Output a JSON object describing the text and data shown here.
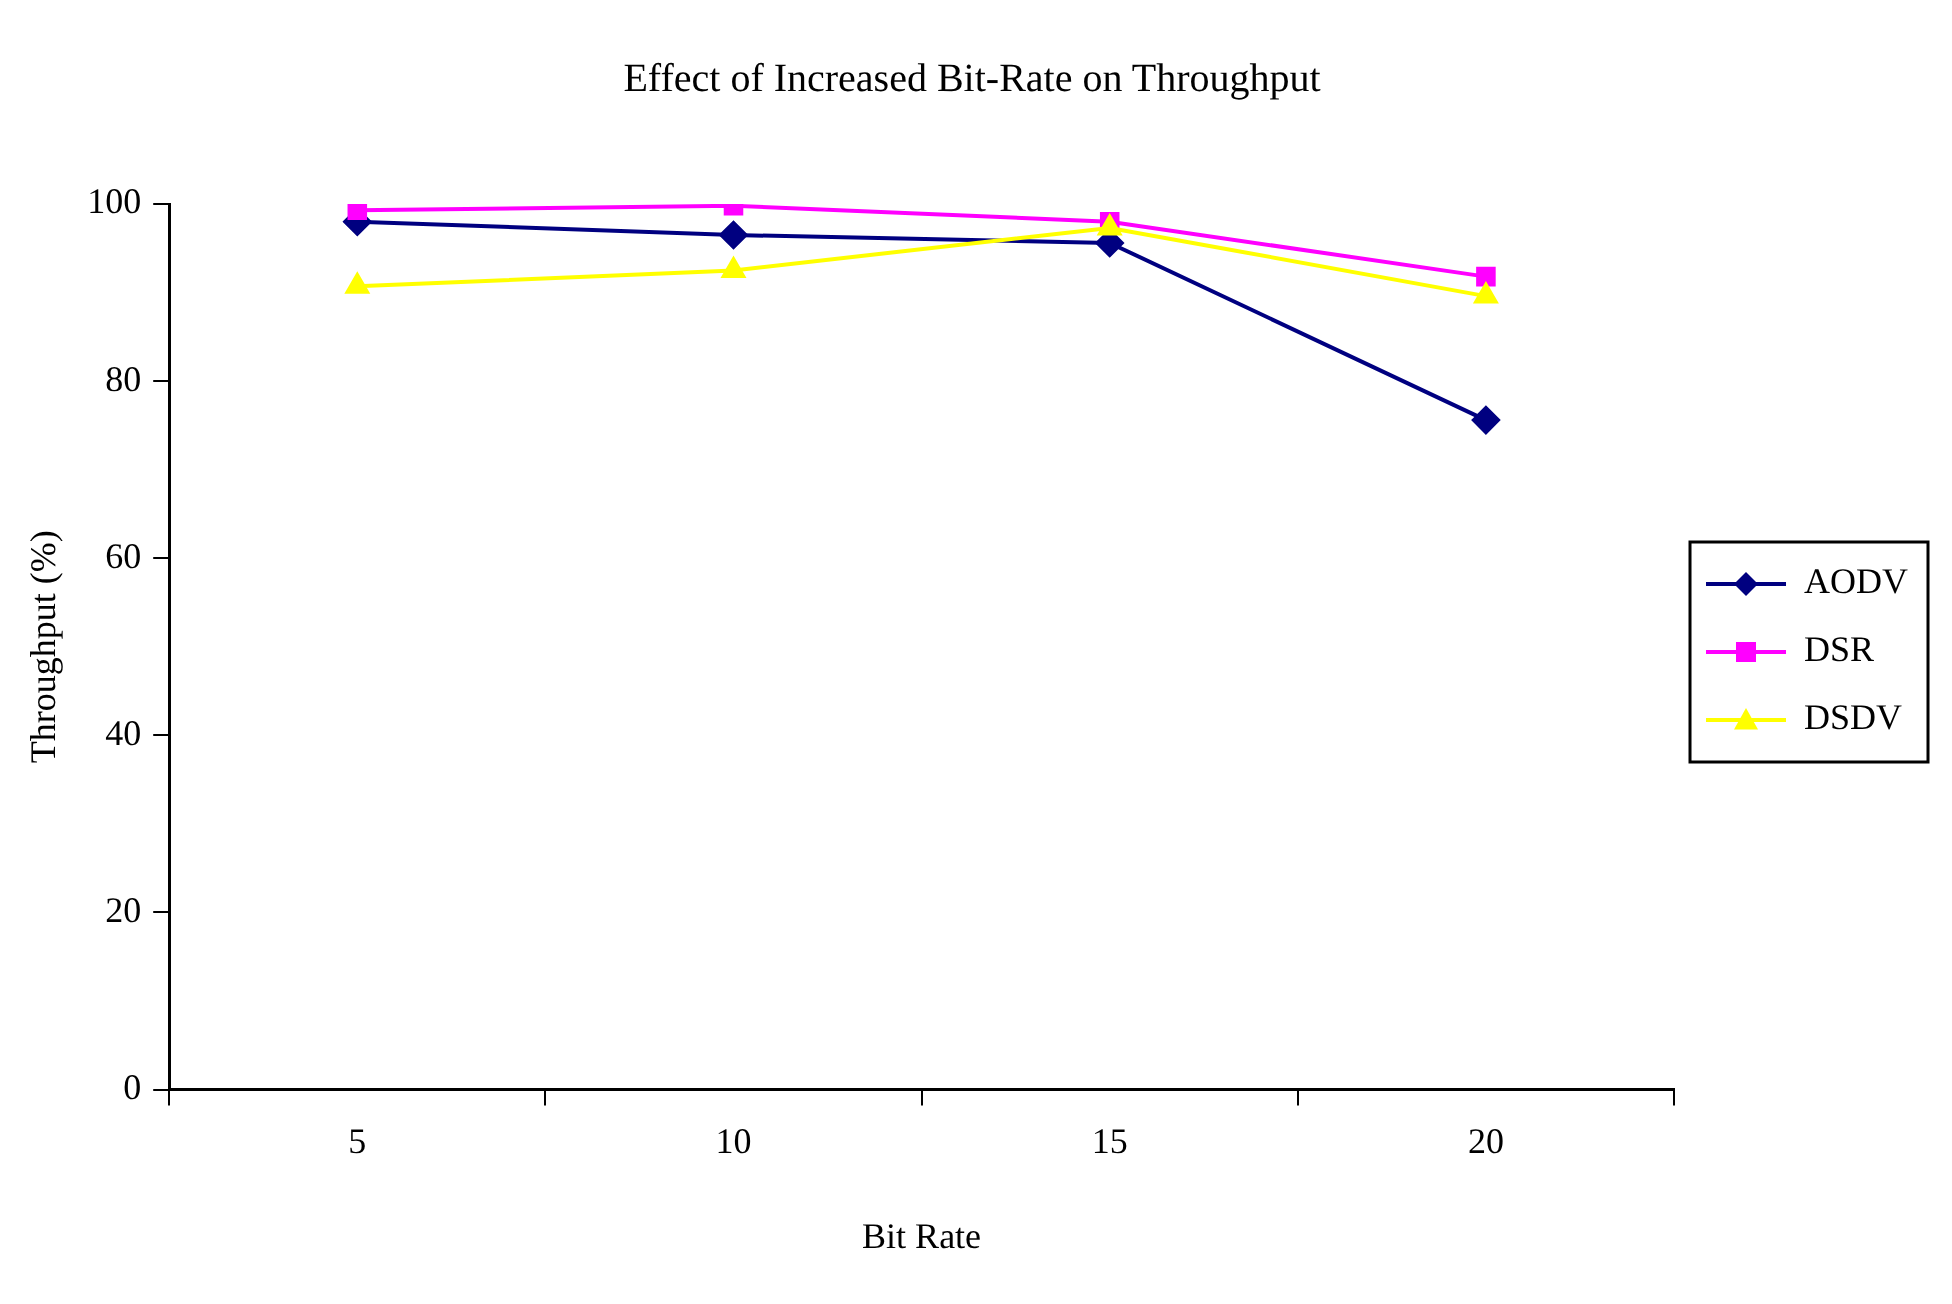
{
  "chart_data": {
    "type": "line",
    "title": "Effect of Increased Bit-Rate on Throughput",
    "xlabel": "Bit Rate",
    "ylabel": "Throughput (%)",
    "categories": [
      "5",
      "10",
      "15",
      "20"
    ],
    "series": [
      {
        "name": "AODV",
        "color": "#000080",
        "marker": "diamond",
        "values": [
          98.0,
          96.5,
          95.6,
          75.6
        ]
      },
      {
        "name": "DSR",
        "color": "#ff00ff",
        "marker": "square",
        "values": [
          99.3,
          99.8,
          98.0,
          91.8
        ]
      },
      {
        "name": "DSDV",
        "color": "#ffff00",
        "marker": "triangle",
        "values": [
          90.7,
          92.5,
          97.3,
          89.6
        ]
      }
    ],
    "ylim": [
      0,
      100
    ],
    "yticks": [
      0,
      20,
      40,
      60,
      80,
      100
    ],
    "grid": false,
    "legend": "right"
  }
}
